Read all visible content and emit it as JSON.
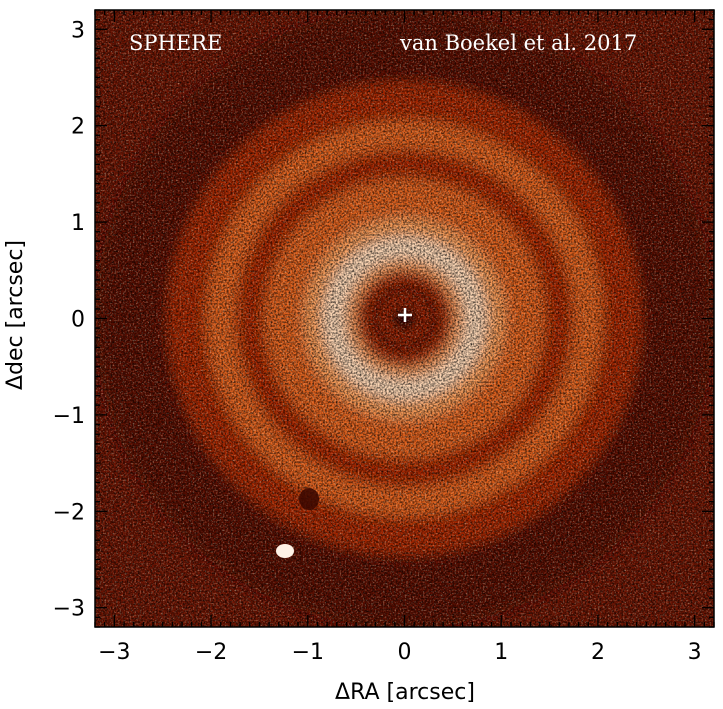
{
  "image": {
    "instrument_label": "SPHERE",
    "credit_label": "van Boekel et al. 2017",
    "star_marker": "plus-icon",
    "colormap": [
      "#1a0400",
      "#5a0c00",
      "#a82800",
      "#e0601a",
      "#f59a55",
      "#fcd8b8",
      "#fff4ec"
    ]
  },
  "axes": {
    "xlabel": "ΔRA [arcsec]",
    "ylabel": "Δdec [arcsec]",
    "xlim": [
      -3.2,
      3.2
    ],
    "ylim": [
      -3.2,
      3.2
    ],
    "x_ticks": [
      {
        "value": -3,
        "label": "−3"
      },
      {
        "value": -2,
        "label": "−2"
      },
      {
        "value": -1,
        "label": "−1"
      },
      {
        "value": 0,
        "label": "0"
      },
      {
        "value": 1,
        "label": "1"
      },
      {
        "value": 2,
        "label": "2"
      },
      {
        "value": 3,
        "label": "3"
      }
    ],
    "y_ticks": [
      {
        "value": 3,
        "label": "3"
      },
      {
        "value": 2,
        "label": "2"
      },
      {
        "value": 1,
        "label": "1"
      },
      {
        "value": 0,
        "label": "0"
      },
      {
        "value": -1,
        "label": "−1"
      },
      {
        "value": -2,
        "label": "−2"
      },
      {
        "value": -3,
        "label": "−3"
      }
    ]
  }
}
